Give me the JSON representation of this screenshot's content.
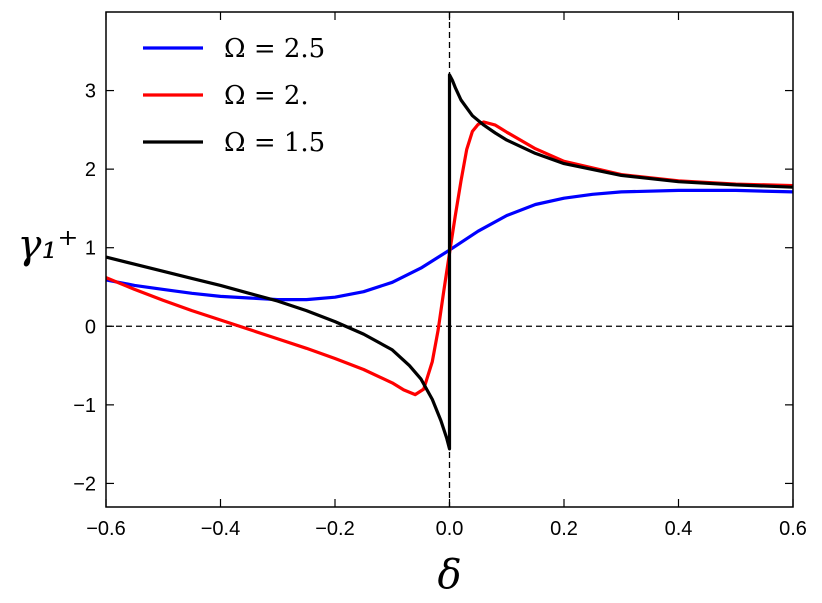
{
  "chart_data": {
    "type": "line",
    "title": "",
    "xlabel": "δ",
    "ylabel": "γ₁⁺",
    "xlim": [
      -0.6,
      0.6
    ],
    "ylim": [
      -2.3,
      4.0
    ],
    "xticks": [
      -0.6,
      -0.4,
      -0.2,
      0.0,
      0.2,
      0.4,
      0.6
    ],
    "xtick_labels": [
      "−0.6",
      "−0.4",
      "−0.2",
      "0.0",
      "0.2",
      "0.4",
      "0.6"
    ],
    "yticks": [
      -2,
      -1,
      0,
      1,
      2,
      3
    ],
    "ytick_labels": [
      "−2",
      "−1",
      "0",
      "1",
      "2",
      "3"
    ],
    "grid": false,
    "legend_position": "top-left",
    "reference_lines": [
      {
        "orientation": "horizontal",
        "value": 0,
        "style": "dashed"
      },
      {
        "orientation": "vertical",
        "value": 0,
        "style": "dashed"
      }
    ],
    "series": [
      {
        "name": "Ω = 2.5",
        "color": "#0000ff",
        "points": [
          [
            -0.6,
            0.59
          ],
          [
            -0.55,
            0.52
          ],
          [
            -0.5,
            0.47
          ],
          [
            -0.45,
            0.42
          ],
          [
            -0.4,
            0.38
          ],
          [
            -0.35,
            0.36
          ],
          [
            -0.3,
            0.34
          ],
          [
            -0.25,
            0.34
          ],
          [
            -0.2,
            0.37
          ],
          [
            -0.15,
            0.44
          ],
          [
            -0.1,
            0.56
          ],
          [
            -0.05,
            0.74
          ],
          [
            0.0,
            0.97
          ],
          [
            0.05,
            1.21
          ],
          [
            0.1,
            1.41
          ],
          [
            0.15,
            1.55
          ],
          [
            0.2,
            1.63
          ],
          [
            0.25,
            1.68
          ],
          [
            0.3,
            1.71
          ],
          [
            0.4,
            1.73
          ],
          [
            0.5,
            1.73
          ],
          [
            0.6,
            1.71
          ]
        ]
      },
      {
        "name": "Ω = 2.",
        "color": "#ff0000",
        "points": [
          [
            -0.6,
            0.62
          ],
          [
            -0.55,
            0.47
          ],
          [
            -0.5,
            0.33
          ],
          [
            -0.45,
            0.2
          ],
          [
            -0.4,
            0.08
          ],
          [
            -0.35,
            -0.04
          ],
          [
            -0.3,
            -0.16
          ],
          [
            -0.25,
            -0.28
          ],
          [
            -0.2,
            -0.41
          ],
          [
            -0.15,
            -0.55
          ],
          [
            -0.1,
            -0.72
          ],
          [
            -0.08,
            -0.81
          ],
          [
            -0.06,
            -0.87
          ],
          [
            -0.045,
            -0.8
          ],
          [
            -0.03,
            -0.45
          ],
          [
            -0.02,
            -0.05
          ],
          [
            -0.01,
            0.45
          ],
          [
            0.0,
            0.93
          ],
          [
            0.01,
            1.4
          ],
          [
            0.02,
            1.85
          ],
          [
            0.03,
            2.25
          ],
          [
            0.04,
            2.48
          ],
          [
            0.05,
            2.57
          ],
          [
            0.06,
            2.6
          ],
          [
            0.08,
            2.56
          ],
          [
            0.1,
            2.47
          ],
          [
            0.15,
            2.26
          ],
          [
            0.2,
            2.1
          ],
          [
            0.3,
            1.93
          ],
          [
            0.4,
            1.85
          ],
          [
            0.5,
            1.81
          ],
          [
            0.6,
            1.79
          ]
        ]
      },
      {
        "name": "Ω = 1.5",
        "color": "#000000",
        "points": [
          [
            -0.6,
            0.88
          ],
          [
            -0.55,
            0.79
          ],
          [
            -0.5,
            0.7
          ],
          [
            -0.45,
            0.61
          ],
          [
            -0.4,
            0.52
          ],
          [
            -0.35,
            0.42
          ],
          [
            -0.3,
            0.32
          ],
          [
            -0.25,
            0.2
          ],
          [
            -0.2,
            0.06
          ],
          [
            -0.15,
            -0.1
          ],
          [
            -0.1,
            -0.3
          ],
          [
            -0.07,
            -0.5
          ],
          [
            -0.05,
            -0.67
          ],
          [
            -0.03,
            -0.93
          ],
          [
            -0.015,
            -1.2
          ],
          [
            -0.005,
            -1.42
          ],
          [
            0.0,
            -1.56
          ],
          [
            0.0,
            3.2
          ],
          [
            0.005,
            3.13
          ],
          [
            0.01,
            3.04
          ],
          [
            0.02,
            2.88
          ],
          [
            0.04,
            2.68
          ],
          [
            0.06,
            2.56
          ],
          [
            0.08,
            2.46
          ],
          [
            0.1,
            2.37
          ],
          [
            0.15,
            2.2
          ],
          [
            0.2,
            2.07
          ],
          [
            0.3,
            1.92
          ],
          [
            0.4,
            1.84
          ],
          [
            0.5,
            1.8
          ],
          [
            0.6,
            1.77
          ]
        ]
      }
    ]
  }
}
